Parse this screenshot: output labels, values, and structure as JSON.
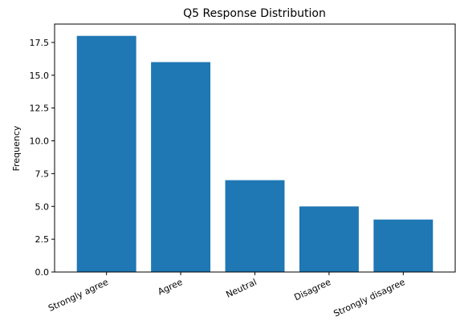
{
  "chart_data": {
    "type": "bar",
    "title": "Q5 Response Distribution",
    "xlabel": "",
    "ylabel": "Frequency",
    "categories": [
      "Strongly agree",
      "Agree",
      "Neutral",
      "Disagree",
      "Strongly disagree"
    ],
    "values": [
      18,
      16,
      7,
      5,
      4
    ],
    "ylim": [
      0,
      18.9
    ],
    "yticks": [
      0,
      2.5,
      5,
      7.5,
      10,
      12.5,
      15,
      17.5
    ],
    "ytick_labels": [
      "0.0",
      "2.5",
      "5.0",
      "7.5",
      "10.0",
      "12.5",
      "15.0",
      "17.5"
    ],
    "bar_color": "#1f77b4",
    "grid": false,
    "legend": "none"
  }
}
